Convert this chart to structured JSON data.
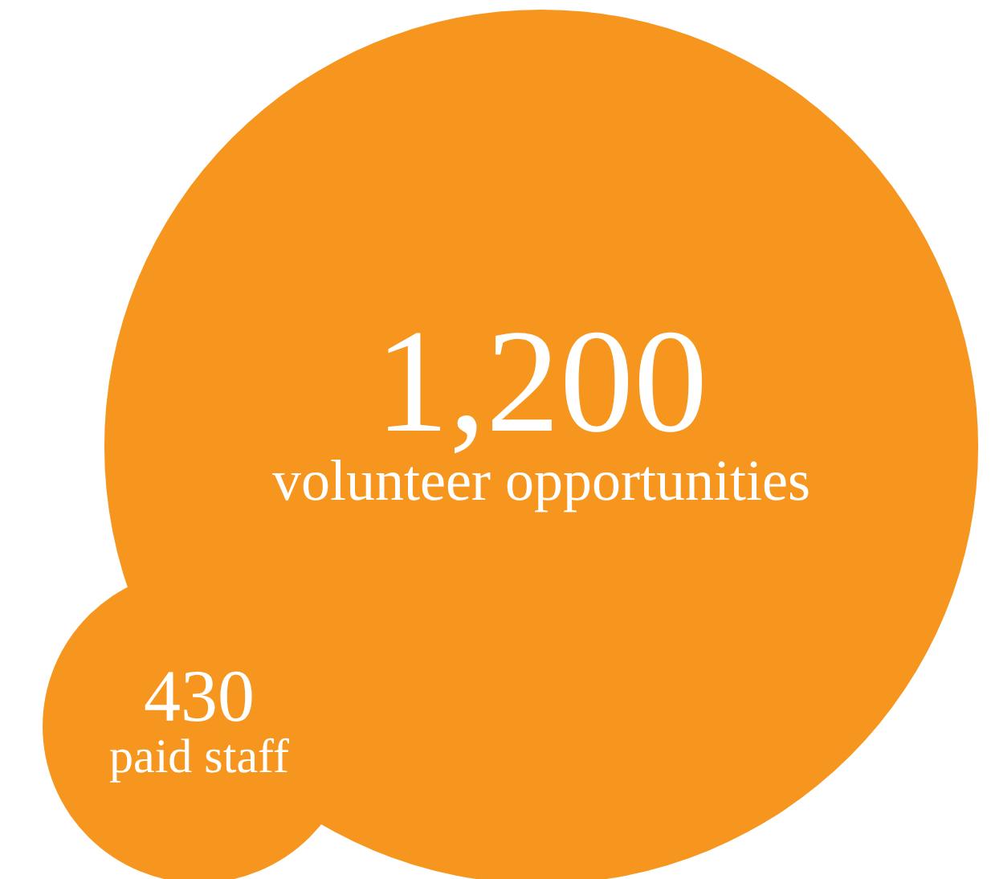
{
  "chart_data": {
    "type": "other",
    "categories": [
      "volunteer opportunities",
      "paid staff"
    ],
    "values": [
      1200,
      430
    ],
    "value_labels": [
      "1,200",
      "430"
    ],
    "colors": [
      "#f7961f",
      "#f7961f"
    ]
  }
}
